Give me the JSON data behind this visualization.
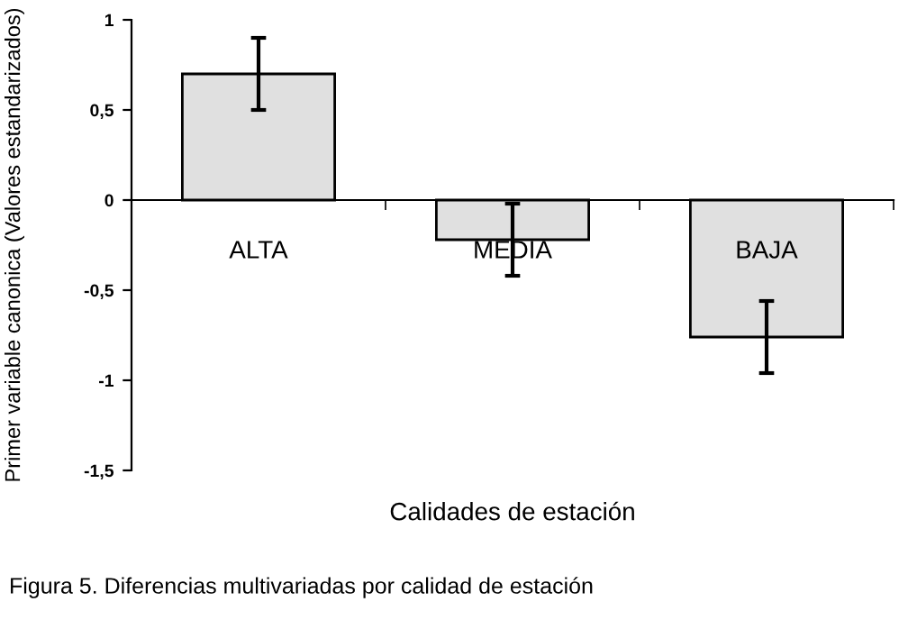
{
  "chart_data": {
    "type": "bar",
    "xlabel": "Calidades de estación",
    "ylabel": "Primer variable canonica (Valores estandarizados)",
    "categories": [
      "ALTA",
      "MEDIA",
      "BAJA"
    ],
    "values": [
      0.7,
      -0.22,
      -0.76
    ],
    "errors": [
      0.2,
      0.2,
      0.2
    ],
    "color": "#e0e0e0",
    "ylim": [
      -1.5,
      1
    ],
    "yticks": [
      {
        "value": -1.5,
        "label": "-1,5"
      },
      {
        "value": -1,
        "label": "-1"
      },
      {
        "value": -0.5,
        "label": "-0,5"
      },
      0,
      {
        "value": 0.5,
        "label": "0,5"
      },
      1
    ],
    "grid": false,
    "legend": false,
    "annotations": [
      "Figura 5. Diferencias multivariadas por calidad de estación"
    ]
  }
}
